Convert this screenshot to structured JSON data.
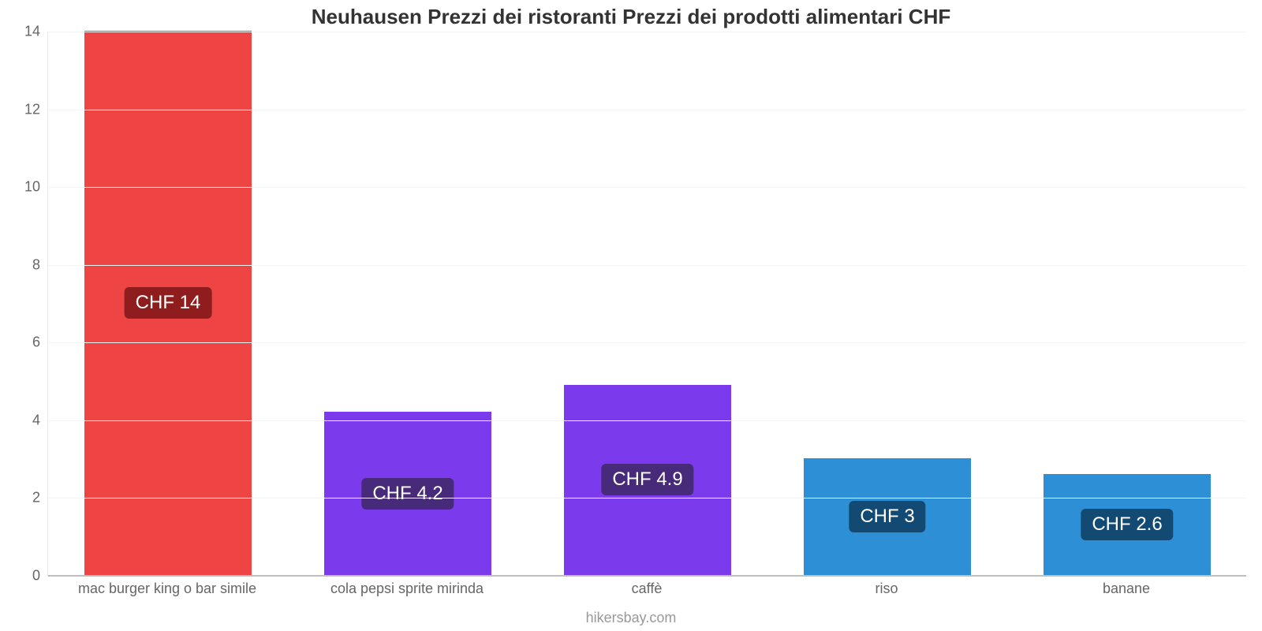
{
  "chart": {
    "type": "bar",
    "title": "Neuhausen Prezzi dei ristoranti Prezzi dei prodotti alimentari CHF",
    "title_fontsize": 26,
    "title_color": "#333333",
    "attribution": "hikersbay.com",
    "attribution_color": "#999999",
    "background_color": "#ffffff",
    "grid_color": "#f4f4f4",
    "axis_line_color": "#bfbfbf",
    "tick_label_color": "#666666",
    "tick_label_fontsize": 18,
    "ylim": [
      0,
      14
    ],
    "ytick_step": 2,
    "yticks": [
      0,
      2,
      4,
      6,
      8,
      10,
      12,
      14
    ],
    "bar_width": 0.7,
    "value_label_fontsize": 24,
    "categories": [
      "mac burger king o bar simile",
      "cola pepsi sprite mirinda",
      "caffè",
      "riso",
      "banane"
    ],
    "values": [
      14,
      4.2,
      4.9,
      3,
      2.6
    ],
    "value_labels": [
      "CHF 14",
      "CHF 4.2",
      "CHF 4.9",
      "CHF 3",
      "CHF 2.6"
    ],
    "bar_colors": [
      "#ef4444",
      "#7c3aed",
      "#7c3aed",
      "#2d8fd6",
      "#2d8fd6"
    ],
    "badge_colors": [
      "#8f1d1d",
      "#472a7a",
      "#472a7a",
      "#124a73",
      "#124a73"
    ],
    "badge_text_color": "#ffffff"
  }
}
